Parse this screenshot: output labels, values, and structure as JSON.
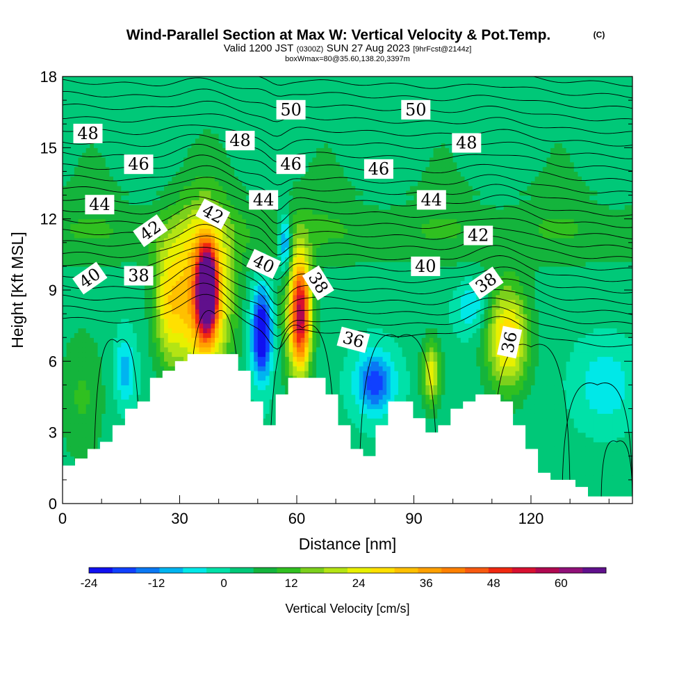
{
  "chart_data": {
    "type": "heatmap",
    "title": "Wind-Parallel Section at Max W: Vertical Velocity & Pot.Temp.",
    "title_units": "(C)",
    "subtitle": {
      "prefix": "Valid 1200 JST",
      "utc": "(0300Z)",
      "date": "SUN 27 Aug 2023",
      "forecast": "[9hrFcst@2144z]"
    },
    "box_info": "boxWmax=80@35.60,138.20,3397m",
    "xlabel": "Distance [nm]",
    "ylabel": "Height [Kft MSL]",
    "xlim": [
      0,
      146
    ],
    "ylim": [
      0,
      18
    ],
    "x_ticks": [
      "0",
      "30",
      "60",
      "90",
      "120"
    ],
    "y_ticks": [
      "0",
      "3",
      "6",
      "9",
      "12",
      "15",
      "18"
    ],
    "grid": false,
    "colorbar": {
      "label": "Vertical Velocity [cm/s]",
      "tick_labels": [
        "-24",
        "-12",
        "0",
        "12",
        "24",
        "36",
        "48",
        "60"
      ],
      "tick_values": [
        -24,
        -12,
        0,
        12,
        24,
        36,
        48,
        60
      ],
      "range": [
        -24,
        68
      ],
      "colors": [
        "#1010f0",
        "#1040ff",
        "#0a78f4",
        "#00b4f0",
        "#00e8e8",
        "#00e1a8",
        "#00c878",
        "#14b43c",
        "#30c020",
        "#7cd01c",
        "#b4e414",
        "#e8f000",
        "#ffe000",
        "#ffc000",
        "#ffa000",
        "#ff8000",
        "#f85a10",
        "#f02810",
        "#d81030",
        "#b00850",
        "#901078",
        "#60108c"
      ]
    },
    "contour_labels": [
      {
        "text": "50",
        "x": 58.5,
        "y": 16.6
      },
      {
        "text": "50",
        "x": 90.5,
        "y": 16.6
      },
      {
        "text": "48",
        "x": 6.5,
        "y": 15.6
      },
      {
        "text": "48",
        "x": 45.5,
        "y": 15.3
      },
      {
        "text": "48",
        "x": 103.5,
        "y": 15.2
      },
      {
        "text": "46",
        "x": 19.5,
        "y": 14.3
      },
      {
        "text": "46",
        "x": 58.5,
        "y": 14.3
      },
      {
        "text": "46",
        "x": 81,
        "y": 14.1
      },
      {
        "text": "44",
        "x": 9.5,
        "y": 12.6
      },
      {
        "text": "44",
        "x": 51.5,
        "y": 12.8
      },
      {
        "text": "44",
        "x": 94.5,
        "y": 12.8
      },
      {
        "text": "42",
        "x": 22.5,
        "y": 11.5,
        "angle": -35
      },
      {
        "text": "42",
        "x": 38.5,
        "y": 12.2,
        "angle": 28
      },
      {
        "text": "42",
        "x": 106.5,
        "y": 11.3
      },
      {
        "text": "40",
        "x": 7,
        "y": 9.5,
        "angle": -35
      },
      {
        "text": "40",
        "x": 51.5,
        "y": 10.1,
        "angle": 25
      },
      {
        "text": "40",
        "x": 93,
        "y": 10.0
      },
      {
        "text": "38",
        "x": 19.5,
        "y": 9.6
      },
      {
        "text": "38",
        "x": 65.5,
        "y": 9.3,
        "angle": 58
      },
      {
        "text": "38",
        "x": 108.5,
        "y": 9.3,
        "angle": -35
      },
      {
        "text": "36",
        "x": 74.5,
        "y": 6.9,
        "angle": 15
      },
      {
        "text": "36",
        "x": 114.5,
        "y": 6.8,
        "angle": -78
      }
    ],
    "terrain_kft": [
      [
        0,
        1.6
      ],
      [
        3.2,
        1.6
      ],
      [
        3.2,
        1.9
      ],
      [
        6.4,
        1.9
      ],
      [
        6.4,
        2.3
      ],
      [
        9.6,
        2.3
      ],
      [
        9.6,
        2.6
      ],
      [
        12.8,
        2.6
      ],
      [
        12.8,
        3.3
      ],
      [
        16,
        3.3
      ],
      [
        16,
        4.0
      ],
      [
        19.2,
        4.0
      ],
      [
        19.2,
        4.3
      ],
      [
        22.4,
        4.3
      ],
      [
        22.4,
        5.3
      ],
      [
        25.6,
        5.3
      ],
      [
        25.6,
        5.6
      ],
      [
        28.8,
        5.6
      ],
      [
        28.8,
        6.0
      ],
      [
        32,
        6.0
      ],
      [
        32,
        6.3
      ],
      [
        45,
        6.3
      ],
      [
        45,
        5.6
      ],
      [
        48.2,
        5.6
      ],
      [
        48.2,
        4.3
      ],
      [
        51.4,
        4.3
      ],
      [
        51.4,
        3.3
      ],
      [
        54.6,
        3.3
      ],
      [
        54.6,
        4.6
      ],
      [
        57.8,
        4.6
      ],
      [
        57.8,
        5.3
      ],
      [
        67.4,
        5.3
      ],
      [
        67.4,
        4.6
      ],
      [
        70.6,
        4.6
      ],
      [
        70.6,
        3.3
      ],
      [
        73.8,
        3.3
      ],
      [
        73.8,
        2.3
      ],
      [
        77,
        2.3
      ],
      [
        77,
        2.0
      ],
      [
        80.2,
        2.0
      ],
      [
        80.2,
        3.3
      ],
      [
        83.4,
        3.3
      ],
      [
        83.4,
        4.3
      ],
      [
        89.8,
        4.3
      ],
      [
        89.8,
        3.6
      ],
      [
        93,
        3.6
      ],
      [
        93,
        3.0
      ],
      [
        96.2,
        3.0
      ],
      [
        96.2,
        3.3
      ],
      [
        99.4,
        3.3
      ],
      [
        99.4,
        4.0
      ],
      [
        102.6,
        4.0
      ],
      [
        102.6,
        4.3
      ],
      [
        105.8,
        4.3
      ],
      [
        105.8,
        4.6
      ],
      [
        112.2,
        4.6
      ],
      [
        112.2,
        4.3
      ],
      [
        115.4,
        4.3
      ],
      [
        115.4,
        3.3
      ],
      [
        118.6,
        3.3
      ],
      [
        118.6,
        2.3
      ],
      [
        121.8,
        2.3
      ],
      [
        121.8,
        1.3
      ],
      [
        125,
        1.3
      ],
      [
        125,
        1.0
      ],
      [
        131.4,
        1.0
      ],
      [
        131.4,
        0.7
      ],
      [
        134.6,
        0.7
      ],
      [
        134.6,
        0.3
      ],
      [
        146,
        0.3
      ]
    ],
    "cells": [
      {
        "x": 37,
        "y": 9.0,
        "sx": 2.3,
        "sy": 1.6,
        "w": 70
      },
      {
        "x": 36,
        "y": 8.6,
        "sx": 7,
        "sy": 3.3,
        "w": 38
      },
      {
        "x": 27,
        "y": 8.5,
        "sx": 4,
        "sy": 2.6,
        "w": 20
      },
      {
        "x": 61,
        "y": 8.0,
        "sx": 2.5,
        "sy": 2.2,
        "w": 42
      },
      {
        "x": 60,
        "y": 7.8,
        "sx": 4,
        "sy": 3.0,
        "w": 16
      },
      {
        "x": 114,
        "y": 7.0,
        "sx": 5.5,
        "sy": 2.2,
        "w": 28
      },
      {
        "x": 94.5,
        "y": 5.5,
        "sx": 2.5,
        "sy": 1.4,
        "w": 22
      },
      {
        "x": 51,
        "y": 7.2,
        "sx": 2.6,
        "sy": 1.9,
        "w": -30
      },
      {
        "x": 57,
        "y": 11.0,
        "sx": 1.6,
        "sy": 1.2,
        "w": -22
      },
      {
        "x": 80,
        "y": 5.1,
        "sx": 5,
        "sy": 1.3,
        "w": -20
      },
      {
        "x": 16,
        "y": 5.6,
        "sx": 2.5,
        "sy": 1.4,
        "w": -12
      },
      {
        "x": 105,
        "y": 8.3,
        "sx": 4,
        "sy": 1.1,
        "w": -10
      },
      {
        "x": 139,
        "y": 5.0,
        "sx": 7,
        "sy": 1.6,
        "w": -9
      },
      {
        "x": 5,
        "y": 4.5,
        "sx": 6,
        "sy": 3.0,
        "w": 8
      }
    ]
  }
}
